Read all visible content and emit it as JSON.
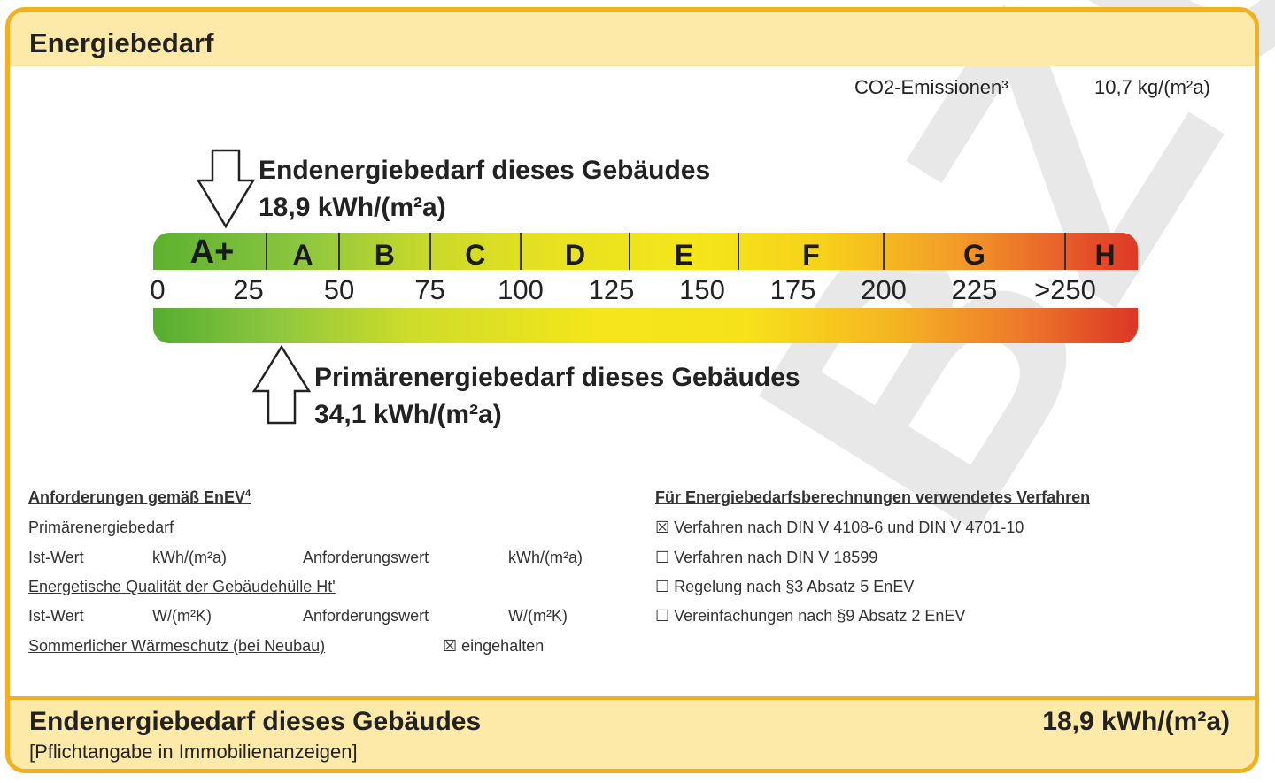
{
  "header": {
    "title": "Energiebedarf"
  },
  "co2": {
    "label": "CO2-Emissionen³",
    "value": "10,7 kg/(m²a)"
  },
  "endenergie": {
    "label": "Endenergiebedarf dieses Gebäudes",
    "value": "18,9 kWh/(m²a)",
    "numeric": 18.9
  },
  "primaerenergie": {
    "label": "Primärenergiebedarf dieses Gebäudes",
    "value": "34,1 kWh/(m²a)",
    "numeric": 34.1
  },
  "scale": {
    "classes": [
      "A+",
      "A",
      "B",
      "C",
      "D",
      "E",
      "F",
      "G",
      "H"
    ],
    "ticks": [
      "0",
      "25",
      "50",
      "75",
      "100",
      "125",
      "150",
      "175",
      "200",
      "225",
      ">250"
    ],
    "colors": {
      "green": "#5cb130",
      "yellow": "#f4e61a",
      "red": "#dd3a25"
    }
  },
  "requirements": {
    "title": "Anforderungen gemäß EnEV",
    "footnote": "4",
    "primary_title": "Primärenergiebedarf",
    "row1": [
      "Ist-Wert",
      "kWh/(m²a)",
      "Anforderungswert",
      "kWh/(m²a)"
    ],
    "hull_title": "Energetische Qualität der Gebäudehülle Ht'",
    "row2": [
      "Ist-Wert",
      "W/(m²K)",
      "Anforderungswert",
      "W/(m²K)"
    ],
    "summer_title": "Sommerlicher Wärmeschutz (bei Neubau)",
    "summer_check": "☒ eingehalten"
  },
  "method": {
    "title": "Für Energiebedarfsberechnungen verwendetes Verfahren",
    "items": [
      {
        "label": "☒ Verfahren nach DIN V 4108-6 und DIN V 4701-10",
        "checked": true
      },
      {
        "label": "☐ Verfahren nach DIN V 18599",
        "checked": false
      },
      {
        "label": "☐ Regelung nach §3 Absatz 5 EnEV",
        "checked": false
      },
      {
        "label": "☐ Vereinfachungen nach §9 Absatz 2 EnEV",
        "checked": false
      }
    ]
  },
  "footer": {
    "title": "Endenergiebedarf dieses Gebäudes",
    "note": "[Pflichtangabe in Immobilienanzeigen]",
    "value": "18,9 kWh/(m²a)"
  },
  "watermark": "BZUG"
}
